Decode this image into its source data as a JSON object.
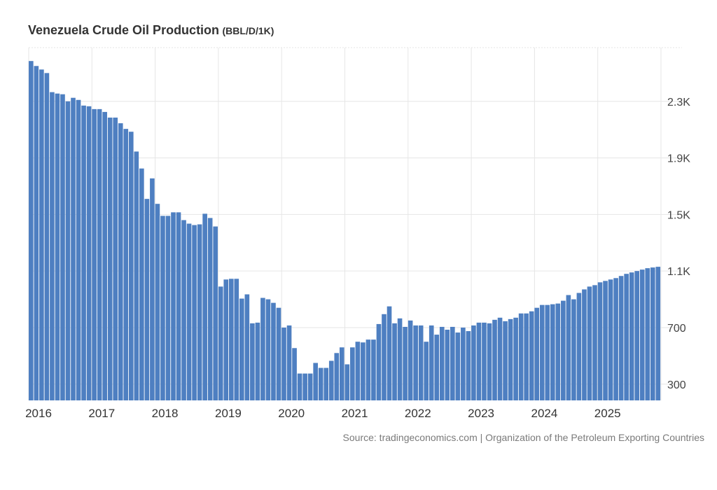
{
  "title": "Venezuela Crude Oil Production",
  "unit": "(BBL/D/1K)",
  "source": "Source: tradingeconomics.com | Organization of the Petroleum Exporting Countries",
  "colors": {
    "bar": "#4e7fc1",
    "grid": "#e6e6e6",
    "text": "#333333"
  },
  "chart_data": {
    "type": "bar",
    "title": "Venezuela Crude Oil Production",
    "ylabel": "BBL/D/1K",
    "xlabel": "",
    "frequency": "monthly",
    "start": "2016-01",
    "end": "2025-12",
    "ylim": [
      185,
      2680
    ],
    "yticks": [
      300,
      700,
      1100,
      1500,
      1900,
      2300
    ],
    "ytick_labels": [
      "300",
      "700",
      "1.1K",
      "1.5K",
      "1.9K",
      "2.3K"
    ],
    "xtick_labels": [
      "2016",
      "2017",
      "2018",
      "2019",
      "2020",
      "2021",
      "2022",
      "2023",
      "2024",
      "2025"
    ],
    "grid": true,
    "y_axis_position": "right",
    "values": [
      2585,
      2550,
      2525,
      2500,
      2365,
      2355,
      2350,
      2300,
      2325,
      2310,
      2270,
      2265,
      2245,
      2245,
      2225,
      2185,
      2185,
      2145,
      2105,
      2085,
      1945,
      1825,
      1610,
      1755,
      1575,
      1490,
      1490,
      1515,
      1515,
      1460,
      1435,
      1425,
      1430,
      1505,
      1475,
      1415,
      990,
      1040,
      1045,
      1045,
      905,
      935,
      730,
      735,
      910,
      900,
      875,
      840,
      700,
      715,
      555,
      375,
      375,
      375,
      450,
      415,
      415,
      465,
      520,
      560,
      440,
      560,
      600,
      595,
      615,
      615,
      725,
      795,
      850,
      730,
      765,
      705,
      750,
      715,
      715,
      600,
      715,
      650,
      705,
      685,
      705,
      665,
      700,
      675,
      715,
      735,
      735,
      730,
      755,
      770,
      745,
      760,
      770,
      800,
      800,
      815,
      840,
      860,
      860,
      865,
      870,
      890,
      930,
      900,
      945,
      970,
      990,
      1000,
      1020,
      1030,
      1040,
      1050,
      1065,
      1080,
      1090,
      1100,
      1110,
      1120,
      1125,
      1130
    ]
  }
}
